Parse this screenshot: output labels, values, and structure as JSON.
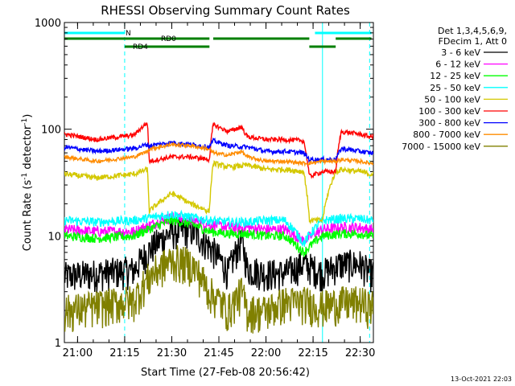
{
  "chart_data": {
    "type": "line",
    "title": "RHESSI Observing Summary Count Rates",
    "xlabel": "Start Time (27-Feb-08 20:56:42)",
    "ylabel_main": "Count Rate (s",
    "ylabel_sup1": "-1",
    "ylabel_mid": " detector",
    "ylabel_sup2": "-1",
    "ylabel_end": ")",
    "yscale": "log",
    "ylim": [
      1,
      1000
    ],
    "xlim_minutes": [
      20.93,
      22.57
    ],
    "x_ticks": [
      "21:00",
      "21:15",
      "21:30",
      "21:45",
      "22:00",
      "22:15",
      "22:30"
    ],
    "x_tick_hours": [
      21.0,
      21.25,
      21.5,
      21.75,
      22.0,
      22.25,
      22.5
    ],
    "y_ticks": [
      "1",
      "10",
      "100",
      "1000"
    ],
    "y_tick_values": [
      1,
      10,
      100,
      1000
    ],
    "legend_header": [
      "Det 1,3,4,5,6,9,",
      "FDecim 1, Att 0"
    ],
    "timestamp": "13-Oct-2021 22:03",
    "flags": [
      {
        "label": "N",
        "color": "#00ffff",
        "segments": [
          [
            20.93,
            21.25
          ],
          [
            22.26,
            22.56
          ]
        ]
      },
      {
        "label": "RD0",
        "color": "#007f00",
        "segments": [
          [
            20.93,
            21.7
          ],
          [
            21.72,
            22.23
          ],
          [
            22.37,
            22.56
          ]
        ]
      },
      {
        "label": "RD4",
        "color": "#007f00",
        "segments": [
          [
            21.25,
            21.7
          ],
          [
            22.23,
            22.37
          ]
        ]
      }
    ],
    "vlines_solid": [
      20.93,
      22.3
    ],
    "vlines_dashed": [
      21.25,
      22.55
    ],
    "series": [
      {
        "name": "3 - 6 keV",
        "color": "#000000",
        "x": [
          20.93,
          21.1,
          21.3,
          21.4,
          21.5,
          21.6,
          21.7,
          21.8,
          21.87,
          21.9,
          22.0,
          22.1,
          22.2,
          22.3,
          22.4,
          22.5,
          22.55
        ],
        "y": [
          4.2,
          4.5,
          4.8,
          8,
          11,
          11.5,
          8,
          4.5,
          9,
          5,
          4.5,
          4.5,
          5.5,
          4.5,
          5.5,
          5.5,
          4.5
        ]
      },
      {
        "name": "6 - 12 keV",
        "color": "#ff00ff",
        "x": [
          20.93,
          21.1,
          21.3,
          21.4,
          21.5,
          21.6,
          21.7,
          21.8,
          21.9,
          22.0,
          22.1,
          22.2,
          22.3,
          22.4,
          22.5,
          22.55
        ],
        "y": [
          11.5,
          11,
          11,
          13,
          15,
          14,
          13,
          12,
          12,
          11.5,
          11.5,
          9,
          11.5,
          12,
          12,
          11.5
        ]
      },
      {
        "name": "12 - 25 keV",
        "color": "#00ff00",
        "x": [
          20.93,
          21.1,
          21.3,
          21.4,
          21.5,
          21.6,
          21.7,
          21.8,
          21.9,
          22.0,
          22.1,
          22.2,
          22.3,
          22.4,
          22.5,
          22.55
        ],
        "y": [
          10,
          9.5,
          10,
          12,
          14,
          13,
          11,
          10.5,
          10.5,
          10,
          10,
          7,
          10,
          10.5,
          10.5,
          10
        ]
      },
      {
        "name": "25 - 50 keV",
        "color": "#00ffff",
        "x": [
          20.93,
          21.1,
          21.3,
          21.4,
          21.5,
          21.6,
          21.7,
          21.8,
          21.9,
          22.0,
          22.1,
          22.2,
          22.3,
          22.4,
          22.5,
          22.55
        ],
        "y": [
          14,
          13.5,
          14,
          15,
          16,
          15,
          14,
          13.5,
          13.5,
          14,
          14,
          8.5,
          14,
          14.5,
          14.5,
          14
        ]
      },
      {
        "name": "50 - 100 keV",
        "color": "#d4c800",
        "x": [
          20.93,
          21.1,
          21.3,
          21.37,
          21.38,
          21.5,
          21.6,
          21.7,
          21.72,
          21.8,
          21.9,
          22.0,
          22.1,
          22.2,
          22.23,
          22.3,
          22.37,
          22.4,
          22.5,
          22.55
        ],
        "y": [
          38,
          35,
          38,
          42,
          17,
          25,
          20,
          17,
          48,
          44,
          46,
          42,
          42,
          40,
          14,
          14,
          40,
          42,
          40,
          38
        ]
      },
      {
        "name": "100 - 300 keV",
        "color": "#ff0000",
        "x": [
          20.93,
          21.1,
          21.3,
          21.37,
          21.38,
          21.5,
          21.6,
          21.7,
          21.72,
          21.8,
          21.87,
          21.9,
          22.0,
          22.1,
          22.2,
          22.23,
          22.3,
          22.37,
          22.4,
          22.5,
          22.55
        ],
        "y": [
          90,
          80,
          88,
          115,
          50,
          55,
          55,
          52,
          110,
          95,
          105,
          85,
          80,
          80,
          78,
          36,
          40,
          40,
          95,
          90,
          85
        ]
      },
      {
        "name": "300 - 800 keV",
        "color": "#0000ff",
        "x": [
          20.93,
          21.1,
          21.3,
          21.37,
          21.38,
          21.5,
          21.6,
          21.7,
          21.72,
          21.8,
          21.9,
          22.0,
          22.1,
          22.2,
          22.23,
          22.3,
          22.37,
          22.4,
          22.5,
          22.55
        ],
        "y": [
          68,
          62,
          66,
          72,
          70,
          75,
          72,
          68,
          78,
          70,
          68,
          62,
          62,
          60,
          52,
          52,
          52,
          66,
          62,
          60
        ]
      },
      {
        "name": "800 - 7000 keV",
        "color": "#ff8c00",
        "x": [
          20.93,
          21.1,
          21.3,
          21.37,
          21.38,
          21.5,
          21.6,
          21.7,
          21.72,
          21.8,
          21.87,
          21.9,
          22.0,
          22.1,
          22.2,
          22.23,
          22.3,
          22.37,
          22.4,
          22.5,
          22.55
        ],
        "y": [
          55,
          50,
          55,
          62,
          65,
          72,
          70,
          65,
          60,
          57,
          62,
          55,
          50,
          50,
          48,
          48,
          50,
          50,
          52,
          50,
          48
        ]
      },
      {
        "name": "7000 - 15000 keV",
        "color": "#808000",
        "x": [
          20.93,
          21.1,
          21.3,
          21.4,
          21.5,
          21.6,
          21.7,
          21.8,
          21.87,
          21.9,
          22.0,
          22.1,
          22.2,
          22.3,
          22.4,
          22.5,
          22.55
        ],
        "y": [
          2.0,
          2.2,
          2.5,
          4.5,
          6.0,
          5.5,
          3.0,
          2.0,
          3.0,
          2.0,
          2.0,
          2.4,
          2.4,
          2.2,
          2.4,
          2.4,
          2.2
        ]
      }
    ]
  }
}
